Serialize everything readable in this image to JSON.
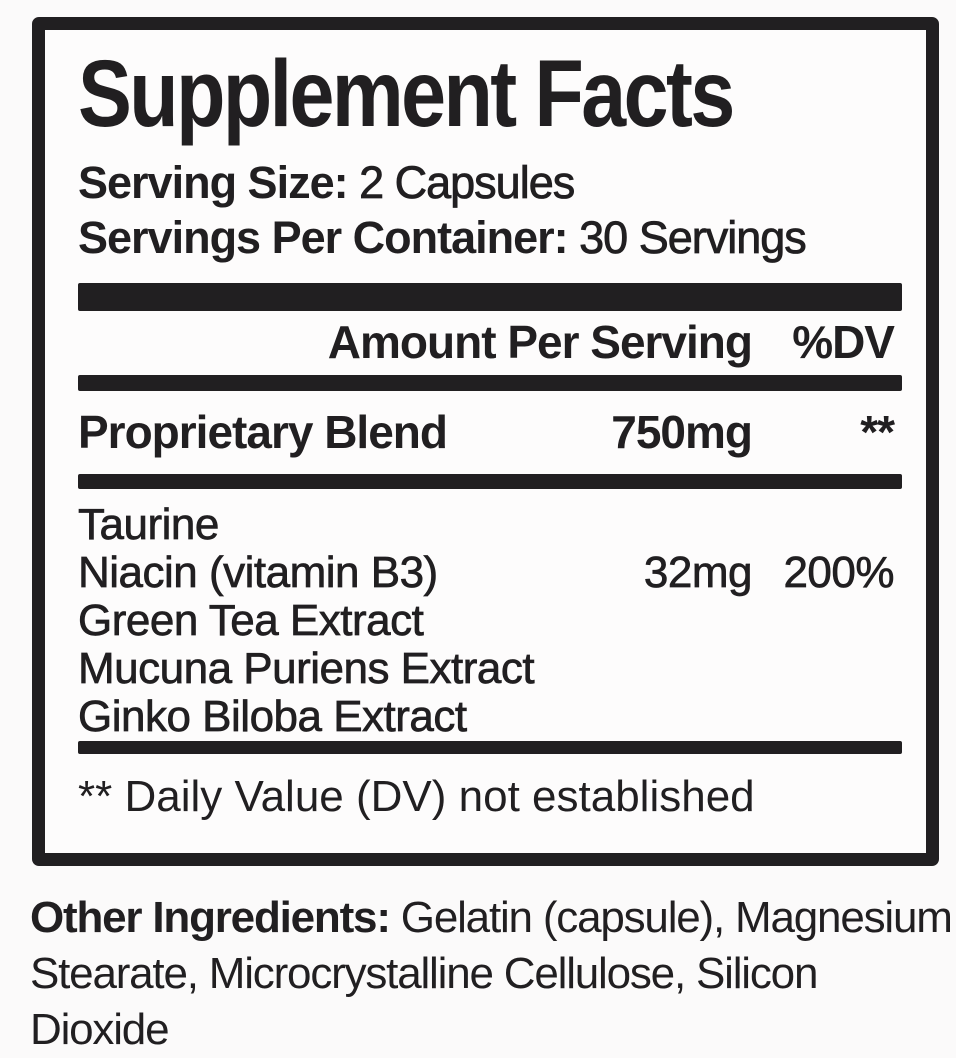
{
  "label": {
    "title": "Supplement Facts",
    "serving_size": {
      "label": "Serving Size:",
      "value": " 2 Capsules"
    },
    "servings_per_container": {
      "label": "Servings Per Container:",
      "value": " 30 Servings"
    },
    "columns": {
      "amount": "Amount Per Serving",
      "dv": "%DV"
    },
    "blend": {
      "name": "Proprietary Blend",
      "amount": "750mg",
      "dv": "**"
    },
    "ingredients": [
      {
        "name": "Taurine",
        "amount": "",
        "dv": ""
      },
      {
        "name": "Niacin (vitamin B3)",
        "amount": "32mg",
        "dv": "200%"
      },
      {
        "name": "Green Tea Extract",
        "amount": "",
        "dv": ""
      },
      {
        "name": "Mucuna Puriens Extract",
        "amount": "",
        "dv": ""
      },
      {
        "name": "Ginko Biloba Extract",
        "amount": "",
        "dv": ""
      }
    ],
    "footnote": "** Daily Value (DV) not established"
  },
  "footer": {
    "label": "Other Ingredients:",
    "text": " Gelatin (capsule), Magnesium Stearate, Microcrystalline Cellulose, Silicon Dioxide"
  },
  "colors": {
    "ink": "#211f21",
    "paper": "#fbfafa",
    "box_paper": "#fdfcfc"
  }
}
